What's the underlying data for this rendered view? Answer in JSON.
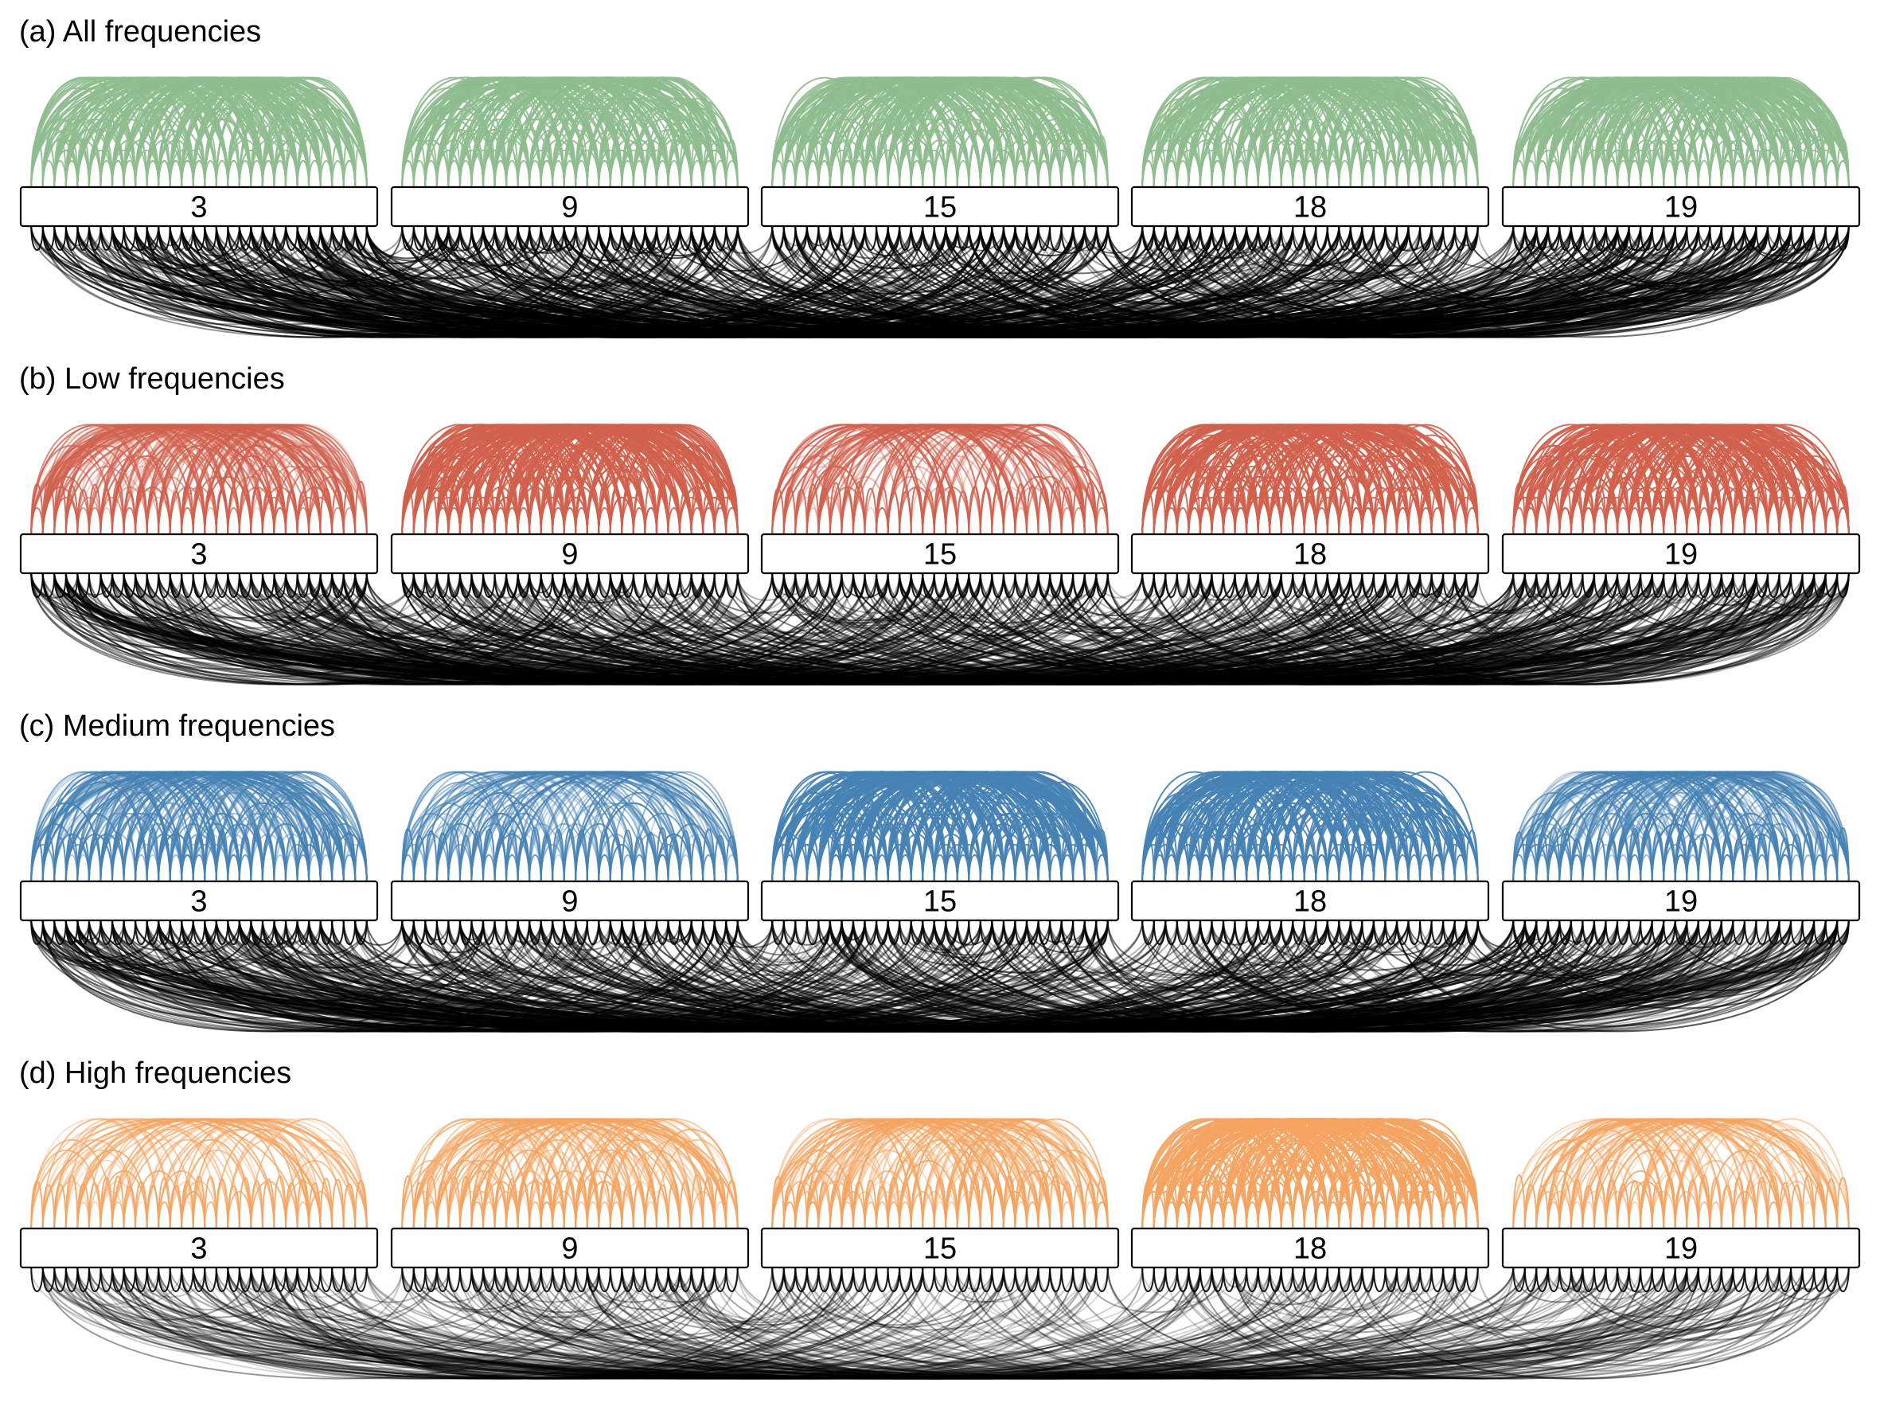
{
  "figure": {
    "groups": [
      "3",
      "9",
      "15",
      "18",
      "19"
    ],
    "panels": [
      {
        "id": "a",
        "title": "(a) All frequencies",
        "color": "#8fbc8f",
        "within_density": [
          1.0,
          1.0,
          1.0,
          1.0,
          1.0
        ],
        "between_opacity": 0.55
      },
      {
        "id": "b",
        "title": "(b) Low frequencies",
        "color": "#d0604d",
        "within_density": [
          0.85,
          1.0,
          0.55,
          0.95,
          1.0
        ],
        "between_opacity": 0.45
      },
      {
        "id": "c",
        "title": "(c) Medium frequencies",
        "color": "#4682b4",
        "within_density": [
          0.9,
          0.6,
          1.0,
          1.0,
          0.85
        ],
        "between_opacity": 0.45
      },
      {
        "id": "d",
        "title": "(d) High frequencies",
        "color": "#f4a460",
        "within_density": [
          0.35,
          0.6,
          0.65,
          1.0,
          0.45
        ],
        "between_opacity": 0.3
      }
    ]
  }
}
